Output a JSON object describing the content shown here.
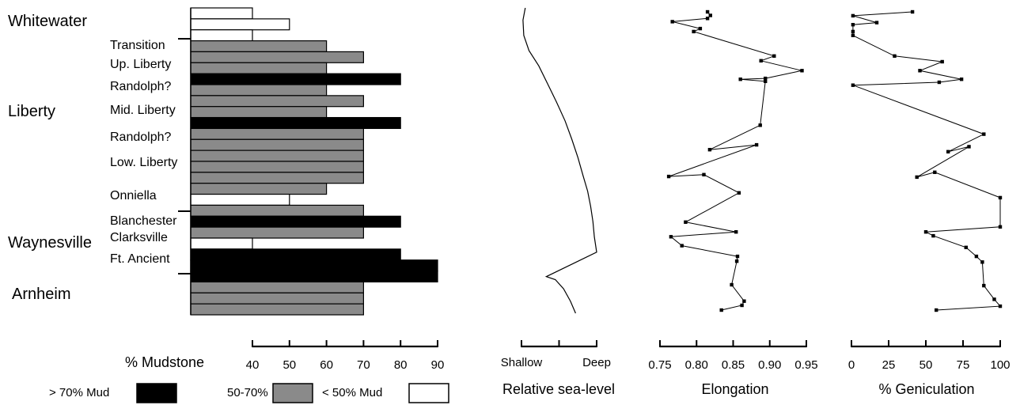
{
  "colors": {
    "high_mud": "#000000",
    "mid_mud": "#8a8a8a",
    "low_mud": "#ffffff",
    "line": "#000000"
  },
  "legend": {
    "high_label": "> 70% Mud",
    "mid_label": "50-70%",
    "low_label": "< 50% Mud"
  },
  "chart_data": [
    {
      "type": "bar",
      "id": "mudstone",
      "xlabel": "% Mudstone",
      "xlim": [
        40,
        90
      ],
      "ticks": [
        40,
        50,
        60,
        70,
        80,
        90
      ],
      "formations": [
        "Whitewater",
        "Liberty",
        "Waynesville",
        "Arnheim"
      ],
      "members": [
        "Transition",
        "Up. Liberty",
        "Randolph?",
        "Mid. Liberty",
        "Randolph?",
        "Low. Liberty",
        "Onniella",
        "Blanchester",
        "Clarksville",
        "Ft. Ancient"
      ],
      "values": [
        40,
        50,
        40,
        60,
        70,
        60,
        80,
        60,
        70,
        60,
        80,
        70,
        70,
        70,
        70,
        70,
        60,
        50,
        70,
        80,
        70,
        40,
        80,
        90,
        90,
        70,
        70,
        70
      ],
      "categories": [
        "low",
        "low",
        "low",
        "mid",
        "mid",
        "mid",
        "high",
        "mid",
        "mid",
        "mid",
        "high",
        "mid",
        "mid",
        "mid",
        "mid",
        "mid",
        "mid",
        "low",
        "mid",
        "high",
        "mid",
        "low",
        "high",
        "high",
        "high",
        "mid",
        "mid",
        "mid"
      ]
    },
    {
      "type": "line",
      "id": "sea-level",
      "xlabel": "Relative sea-level",
      "tick_labels": [
        "Shallow",
        "",
        "Deep"
      ],
      "note": "curve shape only; relative scale 0 (shallow) to 1 (deep)",
      "x": [
        0.05,
        0.02,
        0.03,
        0.1,
        0.23,
        0.35,
        0.47,
        0.58,
        0.67,
        0.75,
        0.82,
        0.88,
        0.92,
        0.95,
        0.97,
        1.0,
        0.33,
        0.45,
        0.56,
        0.65,
        0.72
      ],
      "y": [
        0,
        0.04,
        0.09,
        0.14,
        0.19,
        0.25,
        0.31,
        0.37,
        0.43,
        0.49,
        0.55,
        0.6,
        0.65,
        0.7,
        0.75,
        0.8,
        0.88,
        0.89,
        0.92,
        0.96,
        1.0
      ]
    },
    {
      "type": "line",
      "id": "elongation",
      "xlabel": "Elongation",
      "xlim": [
        0.75,
        0.95
      ],
      "ticks": [
        0.75,
        0.8,
        0.85,
        0.9,
        0.95
      ],
      "tick_labels": [
        "0.75",
        "0.80",
        "0.85",
        "0.90",
        "0.95"
      ],
      "x": [
        0.815,
        0.819,
        0.815,
        0.767,
        0.805,
        0.796,
        0.906,
        0.888,
        0.944,
        0.894,
        0.86,
        0.894,
        0.887,
        0.818,
        0.882,
        0.762,
        0.81,
        0.858,
        0.785,
        0.854,
        0.765,
        0.78,
        0.856,
        0.855,
        0.848,
        0.865,
        0.862,
        0.834
      ],
      "y": [
        0.0,
        0.012,
        0.022,
        0.033,
        0.056,
        0.066,
        0.148,
        0.164,
        0.197,
        0.223,
        0.226,
        0.233,
        0.38,
        0.462,
        0.446,
        0.552,
        0.546,
        0.607,
        0.705,
        0.738,
        0.754,
        0.784,
        0.82,
        0.836,
        0.915,
        0.97,
        0.984,
        1.0
      ]
    },
    {
      "type": "line",
      "id": "geniculation",
      "xlabel": "% Geniculation",
      "xlim": [
        0,
        100
      ],
      "ticks": [
        0,
        25,
        50,
        75,
        100
      ],
      "x": [
        41,
        1,
        17,
        1,
        1,
        1,
        29,
        61,
        46,
        74,
        59,
        1,
        89,
        65,
        79,
        44,
        56,
        100,
        100,
        50,
        55,
        77,
        84,
        88,
        89,
        96,
        100,
        57
      ],
      "y": [
        0.0,
        0.013,
        0.036,
        0.043,
        0.066,
        0.079,
        0.148,
        0.167,
        0.197,
        0.226,
        0.236,
        0.246,
        0.41,
        0.469,
        0.452,
        0.554,
        0.538,
        0.623,
        0.721,
        0.738,
        0.751,
        0.79,
        0.82,
        0.839,
        0.918,
        0.964,
        0.987,
        1.0
      ]
    }
  ]
}
